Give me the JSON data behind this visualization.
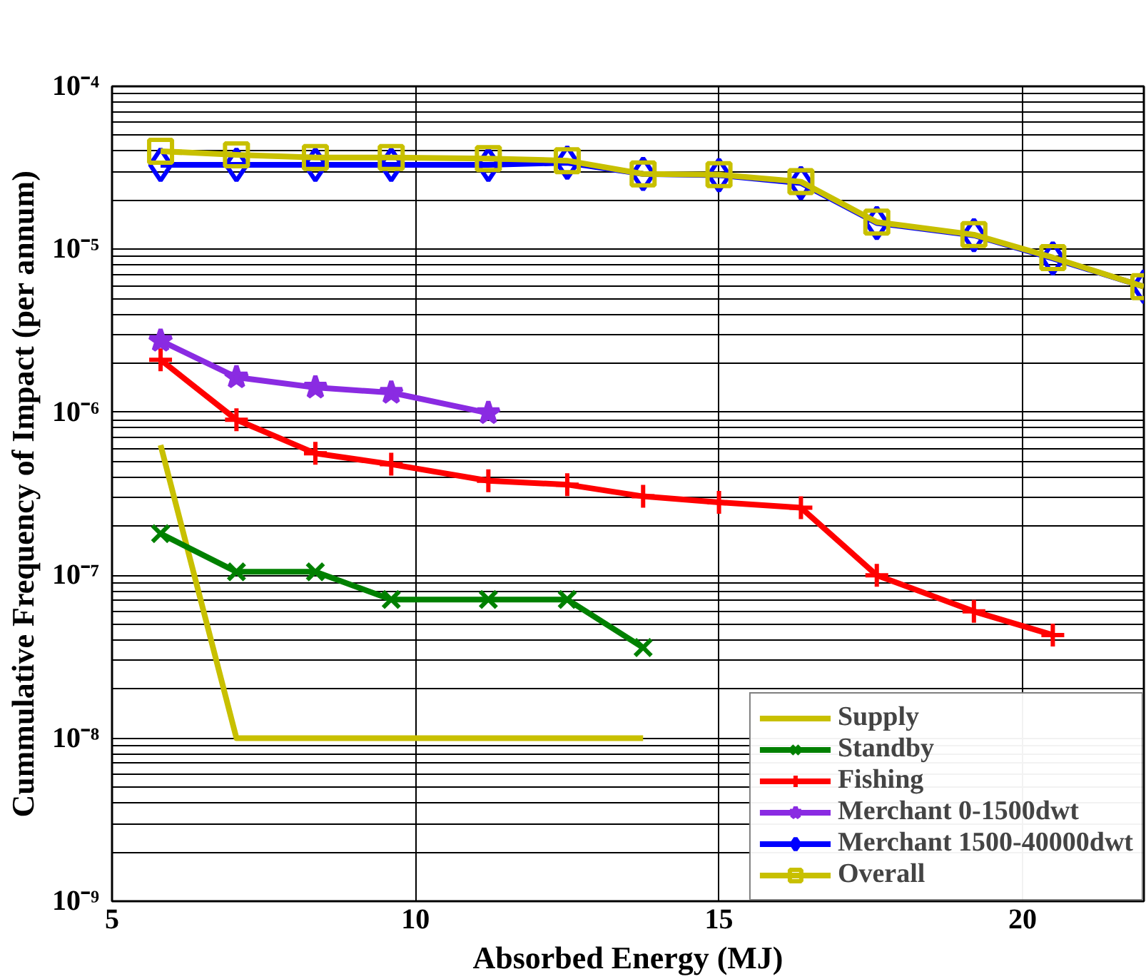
{
  "chart_data": {
    "type": "line",
    "xlabel": "Absorbed Energy (MJ)",
    "ylabel": "Cummulative Frequency of Impact (per annum)",
    "log": "y",
    "grid": true,
    "legend": "bottom right",
    "xlim": [
      5,
      22
    ],
    "xticks": [
      5,
      10,
      15,
      20
    ],
    "ylim": [
      1e-09,
      0.0001
    ],
    "yticks": [
      {
        "value": 1e-09,
        "label": "10⁻⁹"
      },
      {
        "value": 1e-08,
        "label": "10⁻⁸"
      },
      {
        "value": 1e-07,
        "label": "10⁻⁷"
      },
      {
        "value": 1e-06,
        "label": "10⁻⁶"
      },
      {
        "value": 1e-05,
        "label": "10⁻⁵"
      },
      {
        "value": 0.0001,
        "label": "10⁻⁴"
      }
    ],
    "series": [
      {
        "name": "Supply",
        "color": "#c8c000",
        "marker": "none",
        "x": [
          5.8,
          7.05,
          13.75
        ],
        "values": [
          6.3e-07,
          1e-08,
          1e-08
        ]
      },
      {
        "name": "Standby",
        "color": "#008000",
        "marker": "cross",
        "x": [
          5.8,
          7.05,
          8.35,
          9.6,
          11.2,
          12.5,
          13.75
        ],
        "values": [
          1.8e-07,
          1.05e-07,
          1.05e-07,
          7.1e-08,
          7.1e-08,
          7.1e-08,
          3.6e-08
        ]
      },
      {
        "name": "Fishing",
        "color": "#ff0000",
        "marker": "plus",
        "x": [
          5.8,
          7.05,
          8.35,
          9.6,
          11.2,
          12.5,
          13.75,
          15,
          16.35,
          17.6,
          19.2,
          20.5
        ],
        "values": [
          2.1e-06,
          9e-07,
          5.6e-07,
          4.8e-07,
          3.8e-07,
          3.6e-07,
          3.05e-07,
          2.8e-07,
          2.6e-07,
          1e-07,
          6e-08,
          4.3e-08
        ]
      },
      {
        "name": "Merchant 0-1500dwt",
        "color": "#8a2be2",
        "marker": "star",
        "x": [
          5.8,
          7.05,
          8.35,
          9.6,
          11.2
        ],
        "values": [
          2.75e-06,
          1.64e-06,
          1.42e-06,
          1.32e-06,
          9.9e-07
        ]
      },
      {
        "name": "Merchant 1500-40000dwt",
        "color": "#0000ff",
        "marker": "diamond",
        "x": [
          5.8,
          7.05,
          8.35,
          9.6,
          11.2,
          12.5,
          13.75,
          15,
          16.35,
          17.6,
          19.2,
          20.5,
          22
        ],
        "values": [
          3.3e-05,
          3.3e-05,
          3.3e-05,
          3.3e-05,
          3.3e-05,
          3.4e-05,
          2.9e-05,
          2.85e-05,
          2.55e-05,
          1.45e-05,
          1.22e-05,
          8.8e-06,
          5.9e-06
        ]
      },
      {
        "name": "Overall",
        "color": "#c8c000",
        "marker": "square",
        "x": [
          5.8,
          7.05,
          8.35,
          9.6,
          11.2,
          12.5,
          13.75,
          15,
          16.35,
          17.6,
          19.2,
          20.5,
          22
        ],
        "values": [
          4e-05,
          3.8e-05,
          3.66e-05,
          3.66e-05,
          3.6e-05,
          3.5e-05,
          2.9e-05,
          2.87e-05,
          2.6e-05,
          1.47e-05,
          1.23e-05,
          8.9e-06,
          5.9e-06
        ]
      }
    ]
  }
}
